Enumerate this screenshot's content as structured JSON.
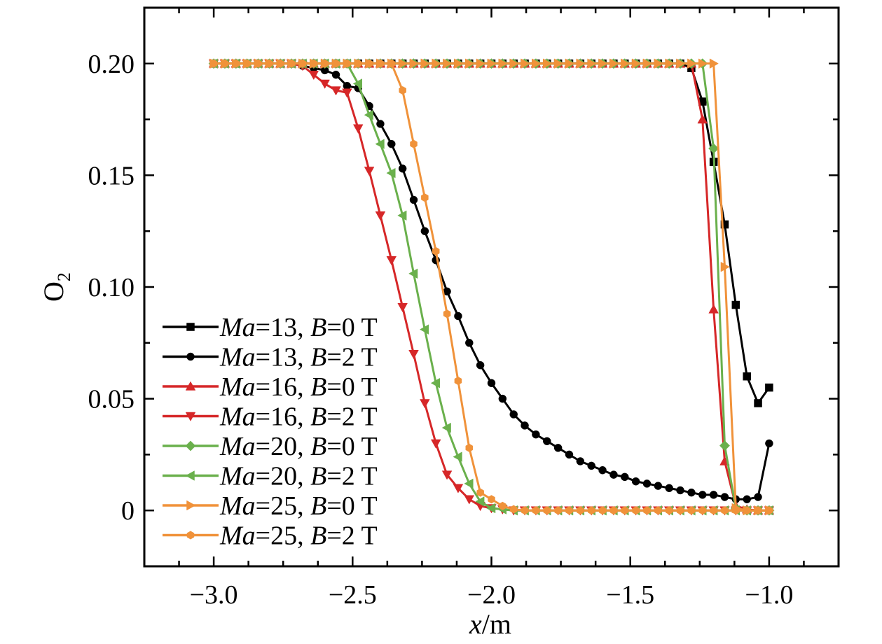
{
  "chart_data": {
    "type": "line",
    "title": "",
    "xlabel": "x/m",
    "ylabel": "O2",
    "xlim": [
      -3.25,
      -0.75
    ],
    "ylim": [
      -0.025,
      0.225
    ],
    "xticks": [
      -3.0,
      -2.5,
      -2.0,
      -1.5,
      -1.0
    ],
    "xtick_labels": [
      "−3.0",
      "−2.5",
      "−2.0",
      "−1.5",
      "−1.0"
    ],
    "yticks": [
      0,
      0.05,
      0.1,
      0.15,
      0.2
    ],
    "ytick_labels": [
      "0",
      "0.05",
      "0.10",
      "0.15",
      "0.20"
    ],
    "grid": false,
    "legend_position": "bottom-left",
    "series": [
      {
        "name": "Ma=13, B=0 T",
        "legend": {
          "ma": "13",
          "b": "0"
        },
        "color": "#000000",
        "marker": "square",
        "x": [
          -3.0,
          -2.96,
          -2.92,
          -2.88,
          -2.84,
          -2.8,
          -2.76,
          -2.72,
          -2.68,
          -2.64,
          -2.6,
          -2.56,
          -2.52,
          -2.48,
          -2.44,
          -2.4,
          -2.36,
          -2.32,
          -2.28,
          -2.24,
          -2.2,
          -2.16,
          -2.12,
          -2.08,
          -2.04,
          -2.0,
          -1.96,
          -1.92,
          -1.88,
          -1.84,
          -1.8,
          -1.76,
          -1.72,
          -1.68,
          -1.64,
          -1.6,
          -1.56,
          -1.52,
          -1.48,
          -1.44,
          -1.4,
          -1.36,
          -1.32,
          -1.28,
          -1.24,
          -1.2,
          -1.16,
          -1.12,
          -1.08,
          -1.04,
          -1.0
        ],
        "y": [
          0.2,
          0.2,
          0.2,
          0.2,
          0.2,
          0.2,
          0.2,
          0.2,
          0.2,
          0.2,
          0.2,
          0.2,
          0.2,
          0.2,
          0.2,
          0.2,
          0.2,
          0.2,
          0.2,
          0.2,
          0.2,
          0.2,
          0.2,
          0.2,
          0.2,
          0.2,
          0.2,
          0.2,
          0.2,
          0.2,
          0.2,
          0.2,
          0.2,
          0.2,
          0.2,
          0.2,
          0.2,
          0.2,
          0.2,
          0.2,
          0.2,
          0.2,
          0.2,
          0.198,
          0.183,
          0.156,
          0.128,
          0.092,
          0.06,
          0.048,
          0.055
        ]
      },
      {
        "name": "Ma=13, B=2 T",
        "legend": {
          "ma": "13",
          "b": "2"
        },
        "color": "#000000",
        "marker": "circle",
        "x": [
          -3.0,
          -2.96,
          -2.92,
          -2.88,
          -2.84,
          -2.8,
          -2.76,
          -2.72,
          -2.68,
          -2.64,
          -2.6,
          -2.56,
          -2.52,
          -2.48,
          -2.44,
          -2.4,
          -2.36,
          -2.32,
          -2.28,
          -2.24,
          -2.2,
          -2.16,
          -2.12,
          -2.08,
          -2.04,
          -2.0,
          -1.96,
          -1.92,
          -1.88,
          -1.84,
          -1.8,
          -1.76,
          -1.72,
          -1.68,
          -1.64,
          -1.6,
          -1.56,
          -1.52,
          -1.48,
          -1.44,
          -1.4,
          -1.36,
          -1.32,
          -1.28,
          -1.24,
          -1.2,
          -1.16,
          -1.12,
          -1.08,
          -1.04,
          -1.0
        ],
        "y": [
          0.2,
          0.2,
          0.2,
          0.2,
          0.2,
          0.2,
          0.2,
          0.2,
          0.199,
          0.198,
          0.197,
          0.195,
          0.19,
          0.189,
          0.181,
          0.173,
          0.164,
          0.153,
          0.139,
          0.125,
          0.112,
          0.098,
          0.087,
          0.075,
          0.065,
          0.057,
          0.05,
          0.043,
          0.038,
          0.034,
          0.031,
          0.028,
          0.025,
          0.022,
          0.02,
          0.018,
          0.016,
          0.015,
          0.013,
          0.012,
          0.011,
          0.01,
          0.009,
          0.008,
          0.007,
          0.007,
          0.006,
          0.005,
          0.005,
          0.006,
          0.03
        ]
      },
      {
        "name": "Ma=16, B=0 T",
        "legend": {
          "ma": "16",
          "b": "0"
        },
        "color": "#d62728",
        "marker": "triangle-up",
        "x": [
          -3.0,
          -2.96,
          -2.92,
          -2.88,
          -2.84,
          -2.8,
          -2.76,
          -2.72,
          -2.68,
          -2.64,
          -2.6,
          -2.56,
          -2.52,
          -2.48,
          -2.44,
          -2.4,
          -2.36,
          -2.32,
          -2.28,
          -2.24,
          -2.2,
          -2.16,
          -2.12,
          -2.08,
          -2.04,
          -2.0,
          -1.96,
          -1.92,
          -1.88,
          -1.84,
          -1.8,
          -1.76,
          -1.72,
          -1.68,
          -1.64,
          -1.6,
          -1.56,
          -1.52,
          -1.48,
          -1.44,
          -1.4,
          -1.36,
          -1.32,
          -1.28,
          -1.24,
          -1.2,
          -1.16,
          -1.12,
          -1.08,
          -1.04,
          -1.0
        ],
        "y": [
          0.2,
          0.2,
          0.2,
          0.2,
          0.2,
          0.2,
          0.2,
          0.2,
          0.2,
          0.2,
          0.2,
          0.2,
          0.2,
          0.2,
          0.2,
          0.2,
          0.2,
          0.2,
          0.2,
          0.2,
          0.2,
          0.2,
          0.2,
          0.2,
          0.2,
          0.2,
          0.2,
          0.2,
          0.2,
          0.2,
          0.2,
          0.2,
          0.2,
          0.2,
          0.2,
          0.2,
          0.2,
          0.2,
          0.2,
          0.2,
          0.2,
          0.2,
          0.2,
          0.2,
          0.175,
          0.09,
          0.022,
          0.002,
          0.0005,
          0.0,
          0.0
        ]
      },
      {
        "name": "Ma=16, B=2 T",
        "legend": {
          "ma": "16",
          "b": "2"
        },
        "color": "#d62728",
        "marker": "triangle-down",
        "x": [
          -3.0,
          -2.96,
          -2.92,
          -2.88,
          -2.84,
          -2.8,
          -2.76,
          -2.72,
          -2.68,
          -2.64,
          -2.6,
          -2.56,
          -2.52,
          -2.48,
          -2.44,
          -2.4,
          -2.36,
          -2.32,
          -2.28,
          -2.24,
          -2.2,
          -2.16,
          -2.12,
          -2.08,
          -2.04,
          -2.0,
          -1.96,
          -1.92,
          -1.88,
          -1.84,
          -1.8,
          -1.76,
          -1.72,
          -1.68,
          -1.64,
          -1.6,
          -1.56,
          -1.52,
          -1.48,
          -1.44,
          -1.4,
          -1.36,
          -1.32,
          -1.28,
          -1.24,
          -1.2,
          -1.16,
          -1.12,
          -1.08,
          -1.04,
          -1.0
        ],
        "y": [
          0.2,
          0.2,
          0.2,
          0.2,
          0.2,
          0.2,
          0.2,
          0.2,
          0.199,
          0.195,
          0.191,
          0.188,
          0.187,
          0.171,
          0.152,
          0.132,
          0.112,
          0.091,
          0.07,
          0.048,
          0.03,
          0.016,
          0.01,
          0.005,
          0.002,
          0.001,
          0.0005,
          0.0,
          0.0,
          0.0,
          0.0,
          0.0,
          0.0,
          0.0,
          0.0,
          0.0,
          0.0,
          0.0,
          0.0,
          0.0,
          0.0,
          0.0,
          0.0,
          0.0,
          0.0,
          0.0,
          0.0,
          0.0,
          0.0,
          0.0,
          0.0
        ]
      },
      {
        "name": "Ma=20, B=0 T",
        "legend": {
          "ma": "20",
          "b": "0"
        },
        "color": "#6ab04c",
        "marker": "diamond",
        "x": [
          -3.0,
          -2.96,
          -2.92,
          -2.88,
          -2.84,
          -2.8,
          -2.76,
          -2.72,
          -2.68,
          -2.64,
          -2.6,
          -2.56,
          -2.52,
          -2.48,
          -2.44,
          -2.4,
          -2.36,
          -2.32,
          -2.28,
          -2.24,
          -2.2,
          -2.16,
          -2.12,
          -2.08,
          -2.04,
          -2.0,
          -1.96,
          -1.92,
          -1.88,
          -1.84,
          -1.8,
          -1.76,
          -1.72,
          -1.68,
          -1.64,
          -1.6,
          -1.56,
          -1.52,
          -1.48,
          -1.44,
          -1.4,
          -1.36,
          -1.32,
          -1.28,
          -1.24,
          -1.2,
          -1.16,
          -1.12,
          -1.08,
          -1.04,
          -1.0
        ],
        "y": [
          0.2,
          0.2,
          0.2,
          0.2,
          0.2,
          0.2,
          0.2,
          0.2,
          0.2,
          0.2,
          0.2,
          0.2,
          0.2,
          0.2,
          0.2,
          0.2,
          0.2,
          0.2,
          0.2,
          0.2,
          0.2,
          0.2,
          0.2,
          0.2,
          0.2,
          0.2,
          0.2,
          0.2,
          0.2,
          0.2,
          0.2,
          0.2,
          0.2,
          0.2,
          0.2,
          0.2,
          0.2,
          0.2,
          0.2,
          0.2,
          0.2,
          0.2,
          0.2,
          0.2,
          0.2,
          0.162,
          0.029,
          0.001,
          0.0,
          0.0,
          0.0
        ]
      },
      {
        "name": "Ma=20, B=2 T",
        "legend": {
          "ma": "20",
          "b": "2"
        },
        "color": "#6ab04c",
        "marker": "triangle-left",
        "x": [
          -3.0,
          -2.96,
          -2.92,
          -2.88,
          -2.84,
          -2.8,
          -2.76,
          -2.72,
          -2.68,
          -2.64,
          -2.6,
          -2.56,
          -2.52,
          -2.48,
          -2.44,
          -2.4,
          -2.36,
          -2.32,
          -2.28,
          -2.24,
          -2.2,
          -2.16,
          -2.12,
          -2.08,
          -2.04,
          -2.0,
          -1.96,
          -1.92,
          -1.88,
          -1.84,
          -1.8,
          -1.76,
          -1.72,
          -1.68,
          -1.64,
          -1.6,
          -1.56,
          -1.52,
          -1.48,
          -1.44,
          -1.4,
          -1.36,
          -1.32,
          -1.28,
          -1.24,
          -1.2,
          -1.16,
          -1.12,
          -1.08,
          -1.04,
          -1.0
        ],
        "y": [
          0.2,
          0.2,
          0.2,
          0.2,
          0.2,
          0.2,
          0.2,
          0.2,
          0.2,
          0.2,
          0.2,
          0.2,
          0.2,
          0.191,
          0.177,
          0.164,
          0.151,
          0.132,
          0.106,
          0.081,
          0.057,
          0.037,
          0.024,
          0.012,
          0.004,
          0.001,
          0.0005,
          0.0,
          0.0,
          0.0,
          0.0,
          0.0,
          0.0,
          0.0,
          0.0,
          0.0,
          0.0,
          0.0,
          0.0,
          0.0,
          0.0,
          0.0,
          0.0,
          0.0,
          0.0,
          0.0,
          0.0,
          0.0,
          0.0,
          0.0,
          0.0
        ]
      },
      {
        "name": "Ma=25, B=0 T",
        "legend": {
          "ma": "25",
          "b": "0"
        },
        "color": "#f0923a",
        "marker": "triangle-right",
        "x": [
          -3.0,
          -2.96,
          -2.92,
          -2.88,
          -2.84,
          -2.8,
          -2.76,
          -2.72,
          -2.68,
          -2.64,
          -2.6,
          -2.56,
          -2.52,
          -2.48,
          -2.44,
          -2.4,
          -2.36,
          -2.32,
          -2.28,
          -2.24,
          -2.2,
          -2.16,
          -2.12,
          -2.08,
          -2.04,
          -2.0,
          -1.96,
          -1.92,
          -1.88,
          -1.84,
          -1.8,
          -1.76,
          -1.72,
          -1.68,
          -1.64,
          -1.6,
          -1.56,
          -1.52,
          -1.48,
          -1.44,
          -1.4,
          -1.36,
          -1.32,
          -1.28,
          -1.24,
          -1.2,
          -1.16,
          -1.12,
          -1.08,
          -1.04,
          -1.0
        ],
        "y": [
          0.2,
          0.2,
          0.2,
          0.2,
          0.2,
          0.2,
          0.2,
          0.2,
          0.2,
          0.2,
          0.2,
          0.2,
          0.2,
          0.2,
          0.2,
          0.2,
          0.2,
          0.2,
          0.2,
          0.2,
          0.2,
          0.2,
          0.2,
          0.2,
          0.2,
          0.2,
          0.2,
          0.2,
          0.2,
          0.2,
          0.2,
          0.2,
          0.2,
          0.2,
          0.2,
          0.2,
          0.2,
          0.2,
          0.2,
          0.2,
          0.2,
          0.2,
          0.2,
          0.2,
          0.2,
          0.2,
          0.109,
          0.001,
          0.0,
          0.0,
          0.0
        ]
      },
      {
        "name": "Ma=25, B=2 T",
        "legend": {
          "ma": "25",
          "b": "2"
        },
        "color": "#f0923a",
        "marker": "hexagon",
        "x": [
          -3.0,
          -2.96,
          -2.92,
          -2.88,
          -2.84,
          -2.8,
          -2.76,
          -2.72,
          -2.68,
          -2.64,
          -2.6,
          -2.56,
          -2.52,
          -2.48,
          -2.44,
          -2.4,
          -2.36,
          -2.32,
          -2.28,
          -2.24,
          -2.2,
          -2.16,
          -2.12,
          -2.08,
          -2.04,
          -2.0,
          -1.96,
          -1.92,
          -1.88,
          -1.84,
          -1.8,
          -1.76,
          -1.72,
          -1.68,
          -1.64,
          -1.6,
          -1.56,
          -1.52,
          -1.48,
          -1.44,
          -1.4,
          -1.36,
          -1.32,
          -1.28,
          -1.24,
          -1.2,
          -1.16,
          -1.12,
          -1.08,
          -1.04,
          -1.0
        ],
        "y": [
          0.2,
          0.2,
          0.2,
          0.2,
          0.2,
          0.2,
          0.2,
          0.2,
          0.2,
          0.2,
          0.2,
          0.2,
          0.2,
          0.2,
          0.2,
          0.2,
          0.2,
          0.188,
          0.164,
          0.14,
          0.116,
          0.088,
          0.058,
          0.028,
          0.008,
          0.005,
          0.002,
          0.0005,
          0.0,
          0.0,
          0.0,
          0.0,
          0.0,
          0.0,
          0.0,
          0.0,
          0.0,
          0.0,
          0.0,
          0.0,
          0.0,
          0.0,
          0.0,
          0.0,
          0.0,
          0.0,
          0.0,
          0.0,
          0.0,
          0.0,
          0.0
        ]
      }
    ]
  }
}
